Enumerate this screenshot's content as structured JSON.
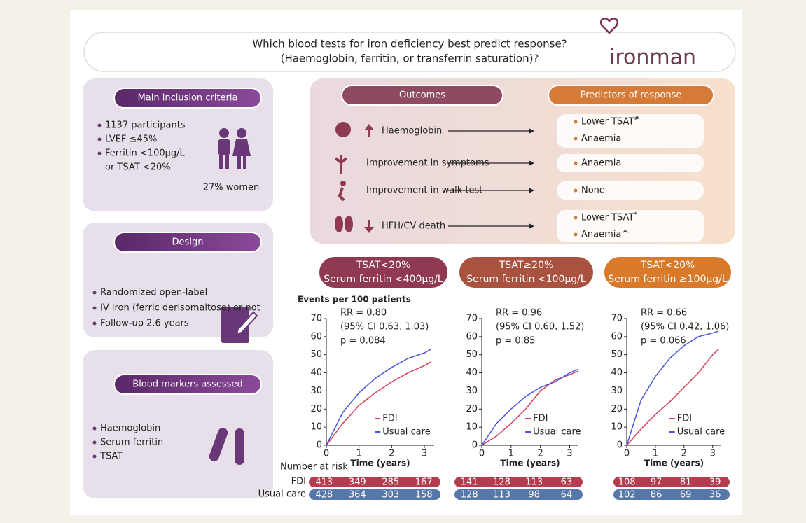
{
  "title": [
    "Which blood tests for iron deficiency best predict response?",
    "(Haemoglobin, ferritin, or transferrin saturation)?"
  ],
  "logo": "ironman",
  "inclusion": {
    "header": "Main inclusion criteria",
    "items": [
      [
        "1137 participants"
      ],
      [
        "LVEF ≤45%"
      ],
      [
        "Ferritin <100µg/L",
        "or TSAT <20%"
      ]
    ],
    "women": "27% women"
  },
  "design": {
    "header": "Design",
    "items": [
      "Randomized open-label",
      "IV iron (ferric derisomaltose) or not",
      "Follow-up 2.6 years"
    ]
  },
  "markers": {
    "header": "Blood markers assessed",
    "items": [
      "Haemoglobin",
      "Serum ferritin",
      "TSAT"
    ]
  },
  "outcomes": {
    "header": "Outcomes",
    "predictors_header": "Predictors of response",
    "rows": [
      {
        "outcome": "Haemoglobin",
        "arrow": "up",
        "predictors": [
          {
            "text": "Lower TSAT",
            "sup": "#"
          },
          {
            "text": "Anaemia"
          }
        ]
      },
      {
        "outcome": "Improvement in symptoms",
        "predictors": [
          {
            "text": "Anaemia"
          }
        ]
      },
      {
        "outcome": "Improvement in walk test",
        "predictors": [
          {
            "text": "None"
          }
        ]
      },
      {
        "outcome": "HFH/CV death",
        "arrow": "down",
        "predictors": [
          {
            "text": "Lower TSAT",
            "sup": "*"
          },
          {
            "text": "Anaemia^"
          }
        ]
      }
    ]
  },
  "at_risk": {
    "title": "Number at risk",
    "rows": [
      "FDI",
      "Usual care"
    ]
  },
  "chart_data": [
    {
      "type": "line",
      "title": "TSAT<20%",
      "subtitle": "Serum ferritin <400µg/L",
      "y_label": "Events per 100 patients",
      "x_label": "Time (years)",
      "annotations": [
        "RR = 0.80",
        "(95% CI 0.63, 1.03)",
        "p = 0.084"
      ],
      "xlim": [
        0,
        3.3
      ],
      "ylim": [
        0,
        70
      ],
      "xticks": [
        0,
        1,
        2,
        3
      ],
      "yticks": [
        0,
        10,
        20,
        30,
        40,
        50,
        60,
        70
      ],
      "series": [
        {
          "name": "FDI",
          "color": "#d0415a",
          "x": [
            0,
            0.5,
            1,
            1.5,
            2,
            2.5,
            3,
            3.2
          ],
          "values": [
            0,
            12,
            22,
            29,
            35,
            40,
            44,
            46
          ]
        },
        {
          "name": "Usual care",
          "color": "#4a55e0",
          "x": [
            0,
            0.5,
            1,
            1.5,
            2,
            2.5,
            3,
            3.2
          ],
          "values": [
            0,
            18,
            29,
            37,
            43,
            48,
            51,
            53
          ]
        }
      ],
      "at_risk": [
        [
          413,
          349,
          285,
          167
        ],
        [
          428,
          364,
          303,
          158
        ]
      ]
    },
    {
      "type": "line",
      "title": "TSAT≥20%",
      "subtitle": "Serum ferritin <100µg/L",
      "x_label": "Time (years)",
      "annotations": [
        "RR = 0.96",
        "(95% CI 0.60, 1.52)",
        "p = 0.85"
      ],
      "xlim": [
        0,
        3.3
      ],
      "ylim": [
        0,
        70
      ],
      "xticks": [
        0,
        1,
        2,
        3
      ],
      "yticks": [
        0,
        10,
        20,
        30,
        40,
        50,
        60,
        70
      ],
      "series": [
        {
          "name": "FDI",
          "color": "#d0415a",
          "x": [
            0,
            0.5,
            1,
            1.5,
            2,
            2.5,
            3,
            3.3
          ],
          "values": [
            0,
            5,
            12,
            20,
            30,
            36,
            39,
            41
          ]
        },
        {
          "name": "Usual care",
          "color": "#4a55e0",
          "x": [
            0,
            0.5,
            1,
            1.5,
            2,
            2.5,
            3,
            3.3
          ],
          "values": [
            0,
            12,
            20,
            27,
            32,
            35,
            40,
            42
          ]
        }
      ],
      "at_risk": [
        [
          141,
          128,
          113,
          63
        ],
        [
          128,
          113,
          98,
          64
        ]
      ]
    },
    {
      "type": "line",
      "title": "TSAT<20%",
      "subtitle": "Serum ferritin ≥100µg/L",
      "x_label": "Time (years)",
      "annotations": [
        "RR = 0.66",
        "(95% CI 0.42, 1.06)",
        "p = 0.066"
      ],
      "xlim": [
        0,
        3.3
      ],
      "ylim": [
        0,
        70
      ],
      "xticks": [
        0,
        1,
        2,
        3
      ],
      "yticks": [
        0,
        10,
        20,
        30,
        40,
        50,
        60,
        70
      ],
      "series": [
        {
          "name": "FDI",
          "color": "#d0415a",
          "x": [
            0,
            0.5,
            1,
            1.5,
            2,
            2.5,
            3,
            3.2
          ],
          "values": [
            0,
            9,
            17,
            24,
            32,
            40,
            50,
            53
          ]
        },
        {
          "name": "Usual care",
          "color": "#4a55e0",
          "x": [
            0,
            0.5,
            1,
            1.5,
            2,
            2.5,
            3,
            3.2
          ],
          "values": [
            0,
            25,
            38,
            48,
            55,
            60,
            62,
            63
          ]
        }
      ],
      "at_risk": [
        [
          108,
          97,
          81,
          39
        ],
        [
          102,
          86,
          69,
          36
        ]
      ]
    }
  ]
}
